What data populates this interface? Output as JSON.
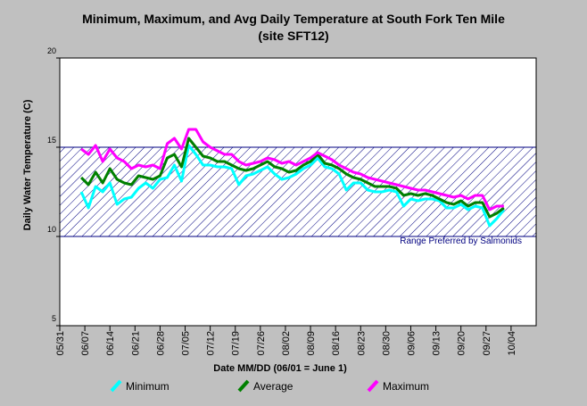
{
  "chart_data": {
    "type": "line",
    "title": "Minimum, Maximum, and Avg Daily Temperature at South Fork Ten Mile",
    "subtitle": "(site SFT12)",
    "xlabel": "Date MM/DD (06/01 = June 1)",
    "ylabel": "Daily Water Temperature (C)",
    "x": [
      6,
      8,
      10,
      12,
      14,
      16,
      18,
      20,
      22,
      24,
      26,
      28,
      30,
      32,
      34,
      36,
      38,
      40,
      42,
      44,
      46,
      48,
      50,
      52,
      54,
      56,
      58,
      60,
      62,
      64,
      66,
      68,
      70,
      72,
      74,
      76,
      78,
      80,
      82,
      84,
      86,
      88,
      90,
      92,
      94,
      96,
      98,
      100,
      102,
      104,
      106,
      108,
      110,
      112,
      114,
      116,
      118,
      120,
      122,
      124
    ],
    "series": [
      {
        "name": "Minimum",
        "color": "#00ffff",
        "values": [
          12.5,
          11.6,
          12.8,
          12.5,
          13.0,
          11.8,
          12.1,
          12.2,
          12.7,
          13.0,
          12.7,
          13.2,
          13.3,
          14.0,
          13.1,
          15.1,
          14.6,
          14.0,
          14.0,
          13.9,
          13.9,
          13.8,
          12.9,
          13.4,
          13.5,
          13.7,
          13.9,
          13.5,
          13.2,
          13.3,
          13.5,
          13.8,
          14.0,
          14.4,
          13.9,
          13.8,
          13.5,
          12.6,
          13.0,
          13.0,
          12.6,
          12.5,
          12.5,
          12.6,
          12.5,
          11.7,
          12.1,
          12.0,
          12.1,
          12.1,
          12.0,
          11.6,
          11.6,
          11.8,
          11.5,
          11.7,
          11.6,
          10.6,
          11.0,
          11.5
        ]
      },
      {
        "name": "Average",
        "color": "#008000",
        "values": [
          13.3,
          12.9,
          13.6,
          13.0,
          13.8,
          13.2,
          13.0,
          12.9,
          13.4,
          13.3,
          13.2,
          13.4,
          14.4,
          14.6,
          13.9,
          15.5,
          15.0,
          14.5,
          14.4,
          14.2,
          14.2,
          14.0,
          13.8,
          13.7,
          13.8,
          14.0,
          14.2,
          13.9,
          13.8,
          13.6,
          13.7,
          14.0,
          14.2,
          14.6,
          14.1,
          14.0,
          13.8,
          13.5,
          13.3,
          13.2,
          13.0,
          12.8,
          12.8,
          12.8,
          12.7,
          12.3,
          12.4,
          12.3,
          12.4,
          12.3,
          12.1,
          11.9,
          11.8,
          12.0,
          11.7,
          11.9,
          11.9,
          11.1,
          11.3,
          11.6
        ]
      },
      {
        "name": "Maximum",
        "color": "#ff00ff",
        "values": [
          14.9,
          14.6,
          15.1,
          14.2,
          14.9,
          14.4,
          14.2,
          13.8,
          14.0,
          13.9,
          14.0,
          13.8,
          15.2,
          15.5,
          14.9,
          16.0,
          16.0,
          15.3,
          15.0,
          14.8,
          14.6,
          14.6,
          14.2,
          14.0,
          14.1,
          14.2,
          14.4,
          14.3,
          14.1,
          14.2,
          14.0,
          14.2,
          14.4,
          14.7,
          14.5,
          14.3,
          14.0,
          13.8,
          13.6,
          13.5,
          13.3,
          13.2,
          13.1,
          13.0,
          12.9,
          12.8,
          12.7,
          12.6,
          12.6,
          12.5,
          12.4,
          12.3,
          12.2,
          12.3,
          12.1,
          12.3,
          12.3,
          11.5,
          11.7,
          11.7
        ]
      }
    ],
    "band": {
      "range": [
        10,
        15
      ],
      "label": "Range Preferred by Salmonids",
      "color": "#000080"
    },
    "xlim": [
      0,
      133
    ],
    "xticks": [
      {
        "value": 0,
        "label": "05/31"
      },
      {
        "value": 7,
        "label": "06/07"
      },
      {
        "value": 14,
        "label": "06/14"
      },
      {
        "value": 21,
        "label": "06/21"
      },
      {
        "value": 28,
        "label": "06/28"
      },
      {
        "value": 35,
        "label": "07/05"
      },
      {
        "value": 42,
        "label": "07/12"
      },
      {
        "value": 49,
        "label": "07/19"
      },
      {
        "value": 56,
        "label": "07/26"
      },
      {
        "value": 63,
        "label": "08/02"
      },
      {
        "value": 70,
        "label": "08/09"
      },
      {
        "value": 77,
        "label": "08/16"
      },
      {
        "value": 84,
        "label": "08/23"
      },
      {
        "value": 91,
        "label": "08/30"
      },
      {
        "value": 98,
        "label": "09/06"
      },
      {
        "value": 105,
        "label": "09/13"
      },
      {
        "value": 112,
        "label": "09/20"
      },
      {
        "value": 119,
        "label": "09/27"
      },
      {
        "value": 126,
        "label": "10/04"
      }
    ],
    "ylim": [
      5,
      20
    ],
    "yticks": [
      5,
      10,
      15,
      20
    ]
  }
}
